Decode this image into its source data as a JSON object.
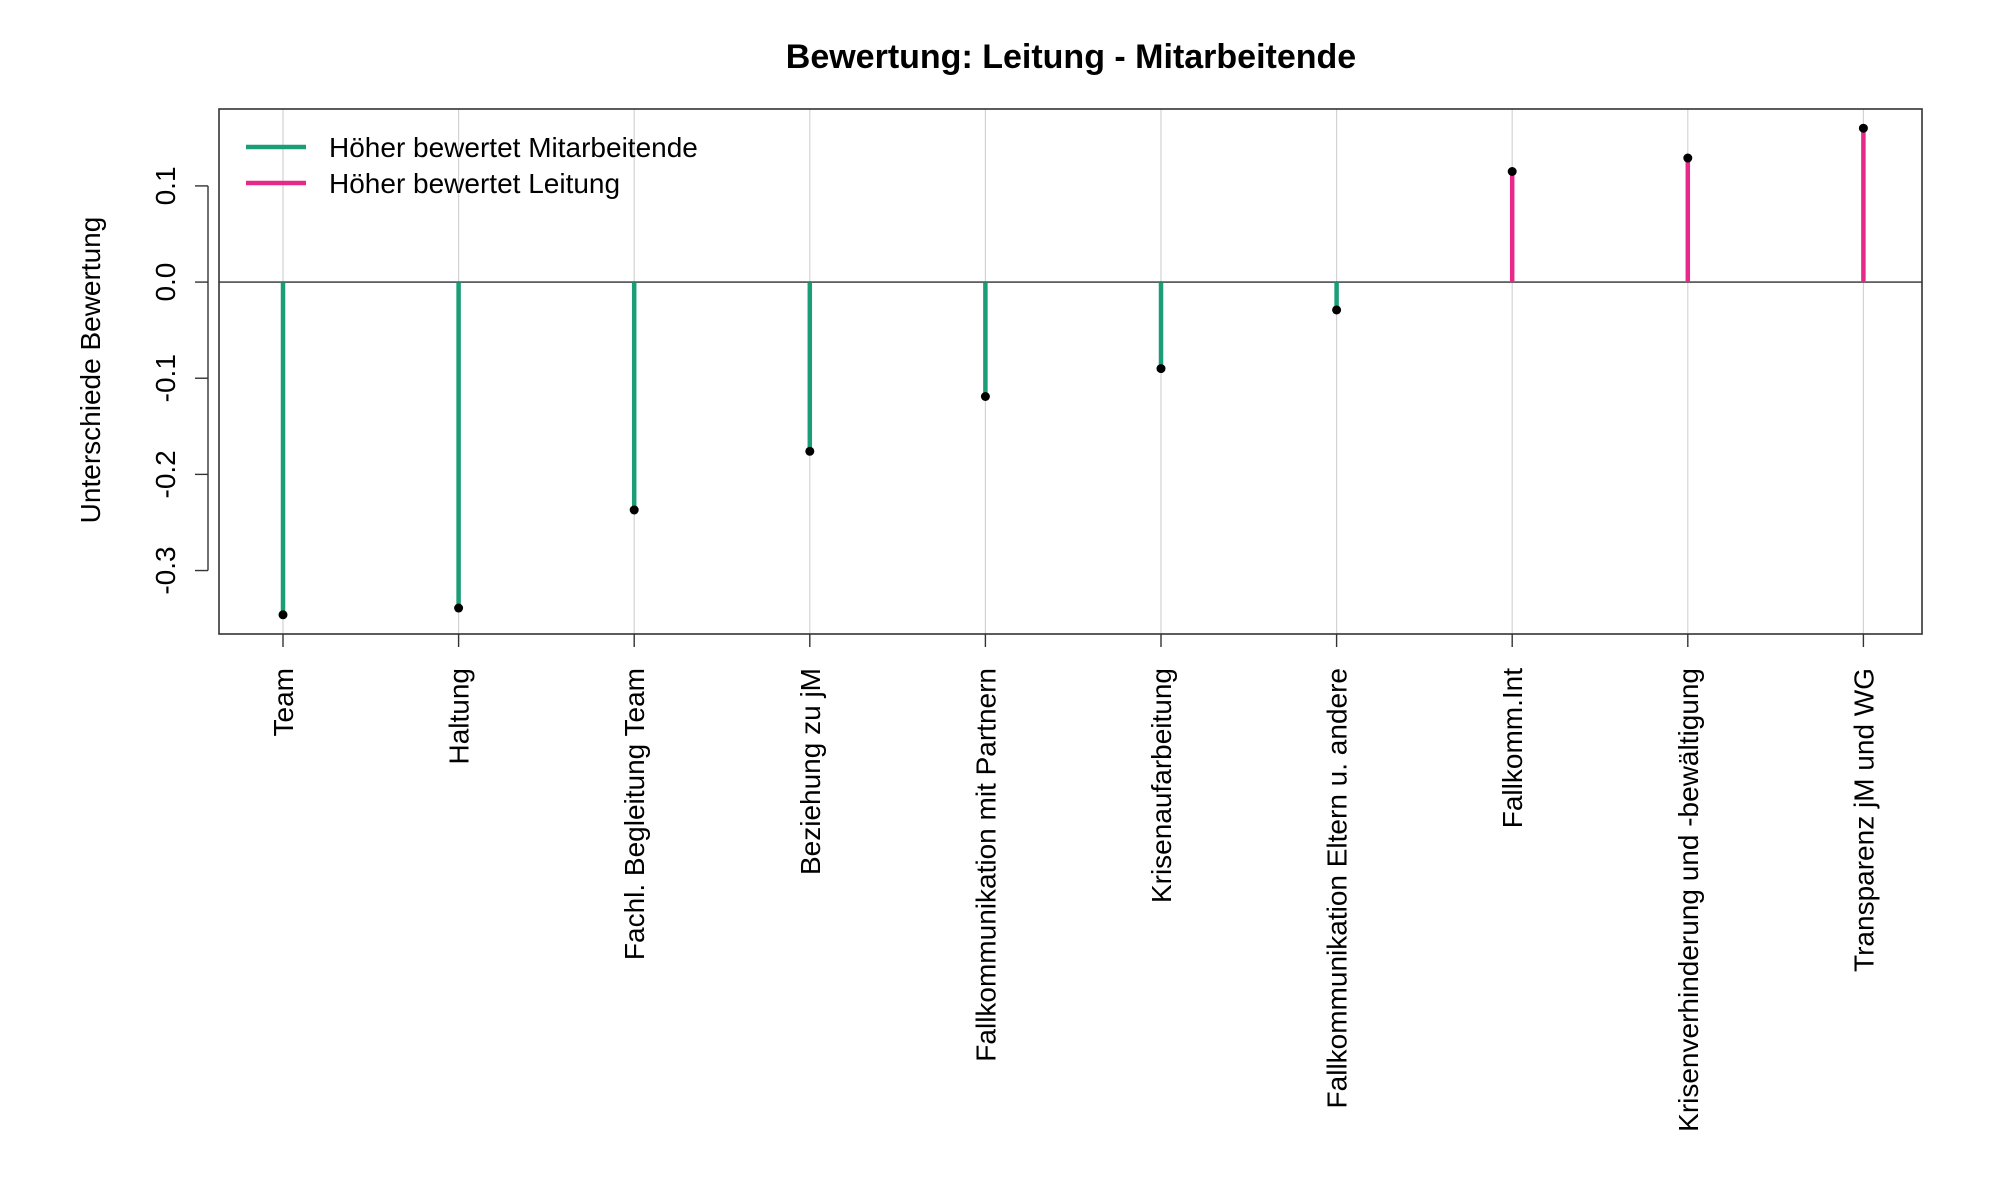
{
  "chart_data": {
    "type": "lollipop",
    "title": "Bewertung: Leitung - Mitarbeitende",
    "xlabel": "",
    "ylabel": "Unterschiede Bewertung",
    "ylim": [
      -0.366,
      0.18
    ],
    "yticks": [
      -0.3,
      -0.2,
      -0.1,
      0.0,
      0.1
    ],
    "ytick_labels": [
      "-0.3",
      "-0.2",
      "-0.1",
      "0.0",
      "0.1"
    ],
    "grid": "vertical",
    "legend_position": "top-left",
    "categories": [
      "Team",
      "Haltung",
      "Fachl. Begleitung Team",
      "Beziehung zu jM",
      "Fallkommunikation mit Partnern",
      "Krisenaufarbeitung",
      "Fallkommunikation Eltern u. andere",
      "Fallkomm.Int",
      "Krisenverhinderung und -bewältigung",
      "Transparenz jM und WG"
    ],
    "values": [
      -0.346,
      -0.339,
      -0.237,
      -0.176,
      -0.119,
      -0.09,
      -0.029,
      0.115,
      0.129,
      0.16
    ],
    "legend": [
      {
        "label": "Höher bewertet Mitarbeitende",
        "color": "#1b9e77"
      },
      {
        "label": "Höher bewertet Leitung",
        "color": "#e7298a"
      }
    ],
    "colors": {
      "negative": "#1b9e77",
      "positive": "#e7298a",
      "point": "#000000",
      "grid": "#d3d3d3",
      "zero_line": "#000000"
    }
  }
}
